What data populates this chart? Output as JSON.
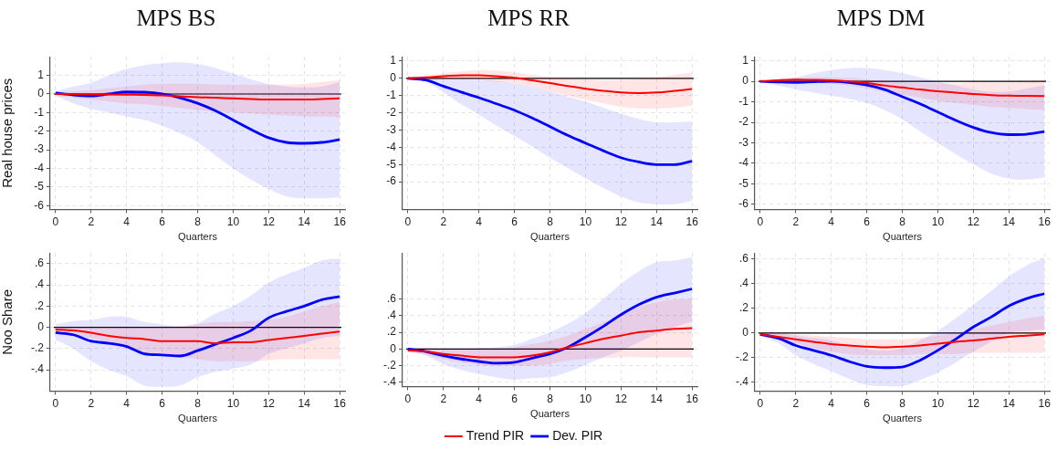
{
  "chart_data": [
    {
      "type": "line",
      "title": "MPS BS",
      "ylabel": "Real house prices",
      "xlabel": "Quarters",
      "x": [
        0,
        1,
        2,
        3,
        4,
        5,
        6,
        7,
        8,
        9,
        10,
        11,
        12,
        13,
        14,
        15,
        16
      ],
      "xlim": [
        -0.3,
        16.3
      ],
      "xticks": [
        0,
        2,
        4,
        6,
        8,
        10,
        12,
        14,
        16
      ],
      "ylim": [
        -6.2,
        2
      ],
      "yticks": [
        -6,
        -5,
        -4,
        -3,
        -2,
        -1,
        0,
        1
      ],
      "grid": true,
      "marker": "none",
      "legend": false,
      "ref_lines": [
        {
          "axis": "y",
          "value": 0,
          "color": "#000000"
        }
      ],
      "series": [
        {
          "color": "#ff0000",
          "values": [
            0,
            0,
            -0.02,
            -0.03,
            -0.04,
            -0.05,
            -0.08,
            -0.12,
            -0.17,
            -0.2,
            -0.24,
            -0.27,
            -0.3,
            -0.3,
            -0.3,
            -0.27,
            -0.23
          ],
          "upper": [
            0.1,
            0.15,
            0.2,
            0.3,
            0.4,
            0.5,
            0.55,
            0.55,
            0.55,
            0.5,
            0.5,
            0.5,
            0.5,
            0.5,
            0.55,
            0.65,
            0.75
          ],
          "lower": [
            -0.1,
            -0.2,
            -0.3,
            -0.4,
            -0.5,
            -0.55,
            -0.65,
            -0.75,
            -0.85,
            -0.95,
            -1.0,
            -1.05,
            -1.1,
            -1.15,
            -1.2,
            -1.22,
            -1.25
          ]
        },
        {
          "color": "#0000ff",
          "values": [
            0.05,
            -0.05,
            -0.1,
            0,
            0.12,
            0.1,
            0,
            -0.2,
            -0.5,
            -0.9,
            -1.4,
            -1.9,
            -2.35,
            -2.6,
            -2.65,
            -2.6,
            -2.45
          ],
          "upper": [
            0.15,
            0.4,
            0.6,
            1.0,
            1.35,
            1.55,
            1.65,
            1.7,
            1.6,
            1.4,
            1.1,
            0.8,
            0.55,
            0.4,
            0.35,
            0.4,
            0.65
          ],
          "lower": [
            -0.1,
            -0.5,
            -0.8,
            -1.0,
            -1.2,
            -1.4,
            -1.7,
            -2.1,
            -2.6,
            -3.3,
            -4.0,
            -4.6,
            -5.1,
            -5.5,
            -5.6,
            -5.6,
            -5.55
          ]
        }
      ]
    },
    {
      "type": "line",
      "title": "MPS RR",
      "xlabel": "Quarters",
      "x": [
        0,
        1,
        2,
        3,
        4,
        5,
        6,
        7,
        8,
        9,
        10,
        11,
        12,
        13,
        14,
        15,
        16
      ],
      "xlim": [
        -0.3,
        16.3
      ],
      "xticks": [
        0,
        2,
        4,
        6,
        8,
        10,
        12,
        14,
        16
      ],
      "ylim": [
        -7.6,
        1.25
      ],
      "yticks": [
        -6,
        -5,
        -4,
        -3,
        -2,
        -1,
        0,
        1
      ],
      "grid": true,
      "marker": "none",
      "legend": false,
      "ref_lines": [
        {
          "axis": "y",
          "value": 0,
          "color": "#000000"
        }
      ],
      "series": [
        {
          "color": "#ff0000",
          "values": [
            0,
            0.05,
            0.12,
            0.17,
            0.18,
            0.12,
            0.03,
            -0.12,
            -0.28,
            -0.45,
            -0.6,
            -0.72,
            -0.82,
            -0.85,
            -0.82,
            -0.73,
            -0.62
          ],
          "upper": [
            0.05,
            0.15,
            0.3,
            0.4,
            0.48,
            0.45,
            0.35,
            0.2,
            0.1,
            0,
            -0.05,
            -0.1,
            -0.1,
            -0.05,
            0.05,
            0.2,
            0.35
          ],
          "lower": [
            -0.05,
            -0.05,
            -0.05,
            -0.05,
            -0.1,
            -0.2,
            -0.3,
            -0.5,
            -0.75,
            -1.0,
            -1.25,
            -1.45,
            -1.65,
            -1.75,
            -1.75,
            -1.7,
            -1.6
          ]
        },
        {
          "color": "#0000ff",
          "values": [
            0,
            -0.1,
            -0.45,
            -0.8,
            -1.12,
            -1.48,
            -1.85,
            -2.3,
            -2.8,
            -3.3,
            -3.75,
            -4.2,
            -4.6,
            -4.85,
            -5.0,
            -5.0,
            -4.8
          ],
          "upper": [
            0,
            0,
            -0.05,
            -0.05,
            -0.1,
            -0.15,
            -0.3,
            -0.5,
            -0.75,
            -1.05,
            -1.35,
            -1.7,
            -2.05,
            -2.35,
            -2.55,
            -2.55,
            -2.5
          ],
          "lower": [
            0,
            -0.2,
            -0.8,
            -1.5,
            -2.1,
            -2.75,
            -3.35,
            -3.95,
            -4.6,
            -5.2,
            -5.8,
            -6.35,
            -6.85,
            -7.2,
            -7.3,
            -7.3,
            -7.1
          ]
        }
      ]
    },
    {
      "type": "line",
      "title": "MPS DM",
      "xlabel": "Quarters",
      "x": [
        0,
        1,
        2,
        3,
        4,
        5,
        6,
        7,
        8,
        9,
        10,
        11,
        12,
        13,
        14,
        15,
        16
      ],
      "xlim": [
        -0.3,
        16.3
      ],
      "xticks": [
        0,
        2,
        4,
        6,
        8,
        10,
        12,
        14,
        16
      ],
      "ylim": [
        -6.25,
        1.2
      ],
      "yticks": [
        -6,
        -5,
        -4,
        -3,
        -2,
        -1,
        0,
        1
      ],
      "grid": true,
      "marker": "none",
      "legend": false,
      "ref_lines": [
        {
          "axis": "y",
          "value": 0,
          "color": "#000000"
        }
      ],
      "series": [
        {
          "color": "#ff0000",
          "values": [
            0,
            0.05,
            0.08,
            0.07,
            0.05,
            0,
            -0.08,
            -0.2,
            -0.3,
            -0.4,
            -0.48,
            -0.55,
            -0.62,
            -0.67,
            -0.7,
            -0.71,
            -0.72
          ],
          "upper": [
            0.05,
            0.12,
            0.18,
            0.2,
            0.2,
            0.17,
            0.1,
            0.02,
            -0.05,
            -0.1,
            -0.1,
            -0.1,
            -0.05,
            -0.05,
            -0.05,
            0,
            0.05
          ],
          "lower": [
            -0.05,
            -0.05,
            -0.05,
            -0.05,
            -0.1,
            -0.2,
            -0.35,
            -0.5,
            -0.65,
            -0.8,
            -0.95,
            -1.05,
            -1.15,
            -1.25,
            -1.3,
            -1.35,
            -1.4
          ]
        },
        {
          "color": "#0000ff",
          "values": [
            0,
            -0.03,
            -0.05,
            -0.02,
            0,
            -0.05,
            -0.18,
            -0.4,
            -0.75,
            -1.1,
            -1.5,
            -1.9,
            -2.25,
            -2.5,
            -2.6,
            -2.58,
            -2.45
          ],
          "upper": [
            0.02,
            0.1,
            0.2,
            0.4,
            0.55,
            0.65,
            0.65,
            0.55,
            0.4,
            0.2,
            0,
            -0.2,
            -0.4,
            -0.5,
            -0.5,
            -0.35,
            -0.2
          ],
          "lower": [
            -0.02,
            -0.2,
            -0.4,
            -0.55,
            -0.7,
            -0.85,
            -1.05,
            -1.4,
            -1.85,
            -2.45,
            -3.0,
            -3.55,
            -4.05,
            -4.5,
            -4.75,
            -4.8,
            -4.7
          ]
        }
      ]
    },
    {
      "type": "line",
      "ylabel": "Noo Share",
      "xlabel": "Quarters",
      "x": [
        0,
        1,
        2,
        3,
        4,
        5,
        6,
        7,
        8,
        9,
        10,
        11,
        12,
        13,
        14,
        15,
        16
      ],
      "xlim": [
        -0.3,
        16.3
      ],
      "xticks": [
        0,
        2,
        4,
        6,
        8,
        10,
        12,
        14,
        16
      ],
      "ylim": [
        -0.6,
        0.7
      ],
      "yticks": [
        {
          "value": -0.4,
          "label": "-.4"
        },
        {
          "value": -0.2,
          "label": "-.2"
        },
        0,
        {
          "value": 0.2,
          "label": ".2"
        },
        {
          "value": 0.4,
          "label": ".4"
        },
        {
          "value": 0.6,
          "label": ".6"
        }
      ],
      "grid": true,
      "marker": "none",
      "legend": false,
      "ref_lines": [
        {
          "axis": "y",
          "value": 0,
          "color": "#000000"
        }
      ],
      "series": [
        {
          "color": "#ff0000",
          "values": [
            -0.02,
            -0.03,
            -0.05,
            -0.08,
            -0.1,
            -0.11,
            -0.13,
            -0.13,
            -0.13,
            -0.15,
            -0.14,
            -0.14,
            -0.12,
            -0.1,
            -0.08,
            -0.06,
            -0.04
          ],
          "upper": [
            0,
            0,
            0,
            0,
            0,
            0,
            0.01,
            0.01,
            0.03,
            0.05,
            0.05,
            0.06,
            0.07,
            0.1,
            0.15,
            0.2,
            0.24
          ],
          "lower": [
            -0.05,
            -0.08,
            -0.1,
            -0.15,
            -0.2,
            -0.25,
            -0.27,
            -0.28,
            -0.3,
            -0.32,
            -0.32,
            -0.32,
            -0.31,
            -0.3,
            -0.3,
            -0.3,
            -0.3
          ]
        },
        {
          "color": "#0000ff",
          "values": [
            -0.05,
            -0.07,
            -0.13,
            -0.15,
            -0.18,
            -0.25,
            -0.26,
            -0.27,
            -0.22,
            -0.16,
            -0.1,
            -0.03,
            0.09,
            0.15,
            0.2,
            0.26,
            0.29
          ],
          "upper": [
            0.03,
            0.06,
            0.07,
            0.1,
            0.1,
            0.05,
            0.03,
            0.01,
            0.04,
            0.13,
            0.2,
            0.3,
            0.42,
            0.5,
            0.56,
            0.63,
            0.65
          ],
          "lower": [
            -0.12,
            -0.2,
            -0.32,
            -0.4,
            -0.46,
            -0.55,
            -0.56,
            -0.55,
            -0.47,
            -0.42,
            -0.39,
            -0.35,
            -0.25,
            -0.2,
            -0.15,
            -0.1,
            -0.08
          ]
        }
      ]
    },
    {
      "type": "line",
      "xlabel": "Quarters",
      "x": [
        0,
        1,
        2,
        3,
        4,
        5,
        6,
        7,
        8,
        9,
        10,
        11,
        12,
        13,
        14,
        15,
        16
      ],
      "xlim": [
        -0.3,
        16.3
      ],
      "xticks": [
        0,
        2,
        4,
        6,
        8,
        10,
        12,
        14,
        16
      ],
      "ylim": [
        -0.45,
        1.15
      ],
      "yticks": [
        {
          "value": -0.4,
          "label": "-.4"
        },
        {
          "value": -0.2,
          "label": "-.2"
        },
        0,
        {
          "value": 0.2,
          "label": ".2"
        },
        {
          "value": 0.4,
          "label": ".4"
        },
        {
          "value": 0.6,
          "label": ".6"
        }
      ],
      "grid": true,
      "marker": "none",
      "legend": "bottom",
      "ref_lines": [
        {
          "axis": "y",
          "value": 0,
          "color": "#000000"
        }
      ],
      "series": [
        {
          "name": "Trend PIR",
          "color": "#ff0000",
          "values": [
            -0.02,
            -0.03,
            -0.06,
            -0.08,
            -0.1,
            -0.1,
            -0.1,
            -0.08,
            -0.04,
            0.02,
            0.07,
            0.12,
            0.16,
            0.2,
            0.22,
            0.24,
            0.25
          ],
          "upper": [
            0,
            0,
            -0.01,
            0,
            0,
            0,
            0.02,
            0.06,
            0.1,
            0.16,
            0.24,
            0.32,
            0.42,
            0.5,
            0.56,
            0.59,
            0.6
          ],
          "lower": [
            -0.04,
            -0.07,
            -0.12,
            -0.16,
            -0.19,
            -0.2,
            -0.2,
            -0.2,
            -0.18,
            -0.14,
            -0.12,
            -0.11,
            -0.1,
            -0.1,
            -0.1,
            -0.1,
            -0.1
          ]
        },
        {
          "name": "Dev. PIR",
          "color": "#0000ff",
          "values": [
            0,
            -0.03,
            -0.08,
            -0.12,
            -0.15,
            -0.17,
            -0.16,
            -0.11,
            -0.06,
            0.02,
            0.14,
            0.27,
            0.41,
            0.53,
            0.62,
            0.67,
            0.72
          ],
          "upper": [
            0.01,
            0.01,
            0,
            0,
            0.01,
            0.02,
            0.05,
            0.12,
            0.2,
            0.3,
            0.43,
            0.6,
            0.78,
            0.93,
            1.04,
            1.06,
            1.1
          ],
          "lower": [
            -0.01,
            -0.08,
            -0.18,
            -0.25,
            -0.3,
            -0.34,
            -0.37,
            -0.35,
            -0.34,
            -0.28,
            -0.19,
            -0.1,
            -0.02,
            0.08,
            0.18,
            0.26,
            0.33
          ]
        }
      ]
    },
    {
      "type": "line",
      "xlabel": "Quarters",
      "x": [
        0,
        1,
        2,
        3,
        4,
        5,
        6,
        7,
        8,
        9,
        10,
        11,
        12,
        13,
        14,
        15,
        16
      ],
      "xlim": [
        -0.3,
        16.3
      ],
      "xticks": [
        0,
        2,
        4,
        6,
        8,
        10,
        12,
        14,
        16
      ],
      "ylim": [
        -0.47,
        0.65
      ],
      "yticks": [
        {
          "value": -0.4,
          "label": "-.4"
        },
        {
          "value": -0.2,
          "label": "-.2"
        },
        0,
        {
          "value": 0.2,
          "label": ".2"
        },
        {
          "value": 0.4,
          "label": ".4"
        },
        {
          "value": 0.6,
          "label": ".6"
        }
      ],
      "grid": true,
      "marker": "none",
      "legend": false,
      "ref_lines": [
        {
          "axis": "y",
          "value": 0,
          "color": "#000000"
        }
      ],
      "series": [
        {
          "color": "#ff0000",
          "values": [
            -0.01,
            -0.03,
            -0.05,
            -0.07,
            -0.09,
            -0.1,
            -0.11,
            -0.115,
            -0.11,
            -0.1,
            -0.085,
            -0.07,
            -0.06,
            -0.045,
            -0.03,
            -0.02,
            -0.01
          ],
          "upper": [
            0,
            0,
            -0.01,
            -0.02,
            -0.03,
            -0.04,
            -0.05,
            -0.05,
            -0.05,
            -0.04,
            -0.02,
            0,
            0.03,
            0.06,
            0.09,
            0.12,
            0.14
          ],
          "lower": [
            -0.02,
            -0.05,
            -0.08,
            -0.12,
            -0.15,
            -0.17,
            -0.18,
            -0.18,
            -0.18,
            -0.17,
            -0.17,
            -0.17,
            -0.16,
            -0.16,
            -0.16,
            -0.16,
            -0.16
          ]
        },
        {
          "color": "#0000ff",
          "values": [
            -0.01,
            -0.04,
            -0.1,
            -0.14,
            -0.18,
            -0.23,
            -0.27,
            -0.28,
            -0.275,
            -0.22,
            -0.14,
            -0.05,
            0.05,
            0.13,
            0.22,
            0.28,
            0.32
          ],
          "upper": [
            0,
            0,
            -0.02,
            -0.04,
            -0.06,
            -0.1,
            -0.13,
            -0.14,
            -0.12,
            -0.06,
            0.02,
            0.12,
            0.23,
            0.34,
            0.46,
            0.55,
            0.61
          ],
          "lower": [
            -0.02,
            -0.08,
            -0.18,
            -0.25,
            -0.31,
            -0.37,
            -0.42,
            -0.43,
            -0.43,
            -0.38,
            -0.32,
            -0.24,
            -0.15,
            -0.07,
            0,
            0.02,
            0.03
          ]
        }
      ]
    }
  ]
}
